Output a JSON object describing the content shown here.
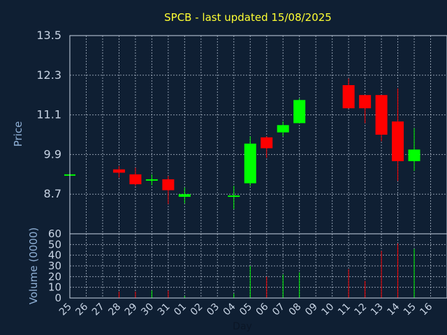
{
  "chart_data": {
    "type": "candlestick",
    "title": "SPCB - last updated 15/08/2025",
    "xlabel": "Day",
    "price_panel": {
      "ylabel": "Price",
      "ylim": [
        7.5,
        13.5
      ],
      "yticks": [
        "13.5",
        "12.3",
        "11.1",
        "9.9",
        "8.7"
      ],
      "ytick_values": [
        13.5,
        12.3,
        11.1,
        9.9,
        8.7
      ]
    },
    "volume_panel": {
      "ylabel": "Volume (0000)",
      "ylim": [
        0,
        60
      ],
      "yticks": [
        "60",
        "50",
        "40",
        "30",
        "20",
        "10",
        "0"
      ],
      "ytick_values": [
        60,
        50,
        40,
        30,
        20,
        10,
        0
      ]
    },
    "categories": [
      "25",
      "26",
      "27",
      "28",
      "29",
      "30",
      "31",
      "01",
      "02",
      "03",
      "04",
      "05",
      "06",
      "07",
      "08",
      "09",
      "10",
      "11",
      "12",
      "13",
      "14",
      "15",
      "16"
    ],
    "candles": [
      {
        "day": "25",
        "open": 9.3,
        "high": 9.3,
        "low": 9.3,
        "close": 9.3,
        "volume": 0
      },
      {
        "day": "28",
        "open": 9.45,
        "high": 9.55,
        "low": 9.2,
        "close": 9.35,
        "volume": 6
      },
      {
        "day": "29",
        "open": 9.3,
        "high": 9.5,
        "low": 8.95,
        "close": 9.0,
        "volume": 6
      },
      {
        "day": "30",
        "open": 9.12,
        "high": 9.3,
        "low": 8.97,
        "close": 9.15,
        "volume": 7
      },
      {
        "day": "31",
        "open": 9.15,
        "high": 9.25,
        "low": 8.4,
        "close": 8.82,
        "volume": 7
      },
      {
        "day": "01",
        "open": 8.62,
        "high": 8.9,
        "low": 8.42,
        "close": 8.7,
        "volume": 2
      },
      {
        "day": "04",
        "open": 8.62,
        "high": 8.95,
        "low": 8.25,
        "close": 8.66,
        "volume": 4
      },
      {
        "day": "05",
        "open": 9.03,
        "high": 10.45,
        "low": 8.95,
        "close": 10.23,
        "volume": 30
      },
      {
        "day": "06",
        "open": 10.42,
        "high": 10.45,
        "low": 9.8,
        "close": 10.09,
        "volume": 20
      },
      {
        "day": "07",
        "open": 10.57,
        "high": 10.9,
        "low": 10.45,
        "close": 10.79,
        "volume": 22
      },
      {
        "day": "08",
        "open": 10.85,
        "high": 11.6,
        "low": 10.85,
        "close": 11.55,
        "volume": 24
      },
      {
        "day": "11",
        "open": 12.0,
        "high": 12.2,
        "low": 11.3,
        "close": 11.3,
        "volume": 27
      },
      {
        "day": "12",
        "open": 11.7,
        "high": 11.7,
        "low": 10.85,
        "close": 11.3,
        "volume": 16
      },
      {
        "day": "13",
        "open": 11.7,
        "high": 11.7,
        "low": 10.3,
        "close": 10.5,
        "volume": 44
      },
      {
        "day": "14",
        "open": 10.9,
        "high": 11.9,
        "low": 9.1,
        "close": 9.7,
        "volume": 51
      },
      {
        "day": "15",
        "open": 9.7,
        "high": 10.7,
        "low": 9.4,
        "close": 10.05,
        "volume": 46
      }
    ],
    "up_color": "#00ff00",
    "down_color": "#ff0000",
    "background": "#0f1f33",
    "grid": true
  }
}
